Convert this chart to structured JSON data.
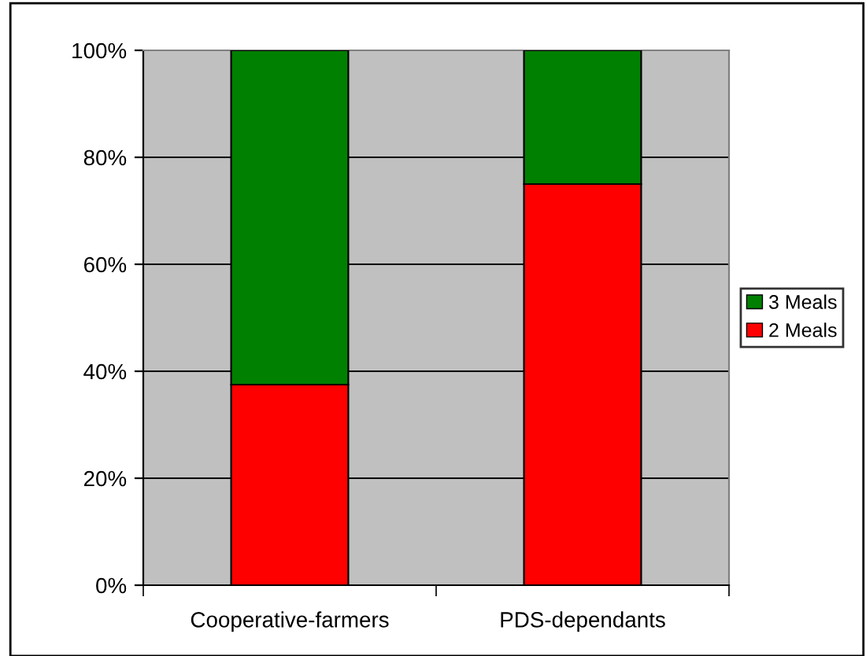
{
  "chart_data": {
    "type": "bar",
    "stacked": true,
    "categories": [
      "Cooperative-farmers",
      "PDS-dependants"
    ],
    "series": [
      {
        "name": "2 Meals",
        "color": "#ff0000",
        "values": [
          37.5,
          75
        ]
      },
      {
        "name": "3 Meals",
        "color": "#008000",
        "values": [
          62.5,
          25
        ]
      }
    ],
    "ylim": [
      0,
      100
    ],
    "yticks": [
      {
        "value": 0,
        "label": "0%"
      },
      {
        "value": 20,
        "label": "20%"
      },
      {
        "value": 40,
        "label": "40%"
      },
      {
        "value": 60,
        "label": "60%"
      },
      {
        "value": 80,
        "label": "80%"
      },
      {
        "value": 100,
        "label": "100%"
      }
    ],
    "grid": "y",
    "legend": "right"
  }
}
